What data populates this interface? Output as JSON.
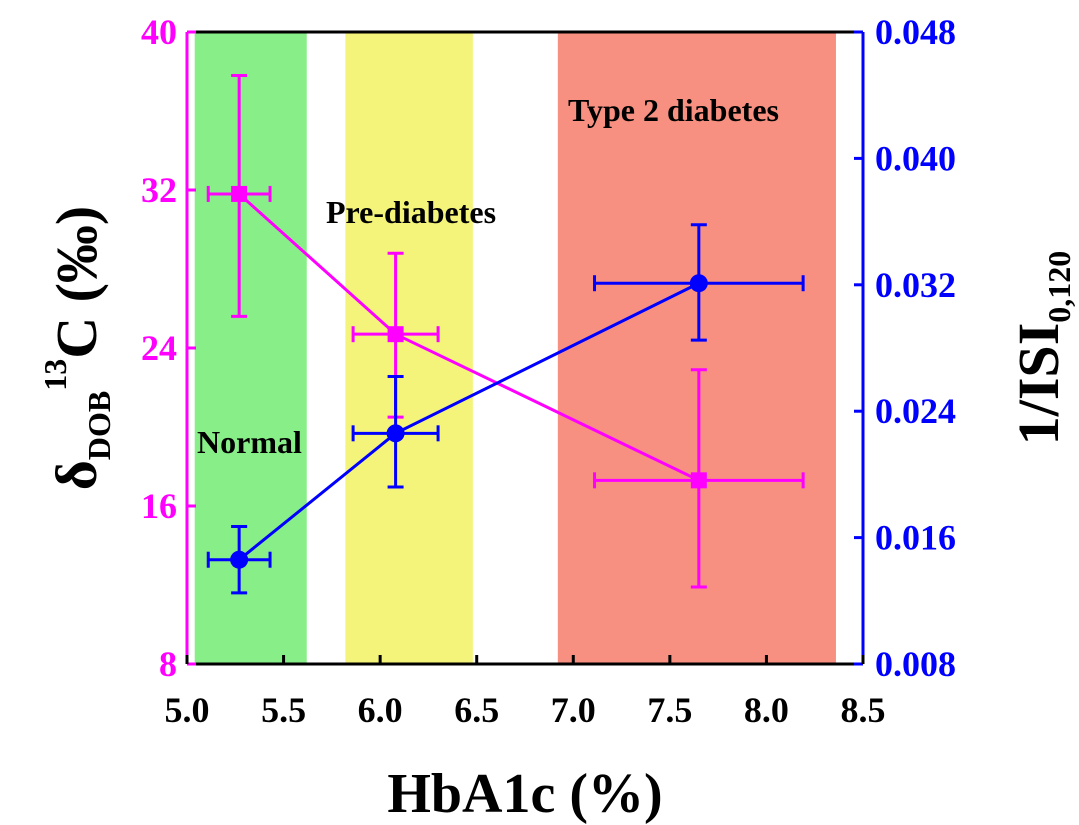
{
  "chart_data": {
    "type": "line",
    "x_axis": {
      "label": "HbA1c (%)",
      "range": [
        5.0,
        8.5
      ],
      "ticks": [
        "5.0",
        "5.5",
        "6.0",
        "6.5",
        "7.0",
        "7.5",
        "8.0",
        "8.5"
      ]
    },
    "y_axis_left": {
      "label_main": "δ",
      "label_sub": "DOB",
      "label_sup": "13",
      "label_rest": "C (‰)",
      "range": [
        8,
        40
      ],
      "ticks": [
        "8",
        "16",
        "24",
        "32",
        "40"
      ],
      "color": "#ff00ff"
    },
    "y_axis_right": {
      "label_main": "1/ISI",
      "label_sub": "0,120",
      "range": [
        0.008,
        0.048
      ],
      "ticks": [
        "0.008",
        "0.016",
        "0.024",
        "0.032",
        "0.040",
        "0.048"
      ],
      "color": "#0000ff"
    },
    "regions": [
      {
        "label": "Normal",
        "x_start": 5.04,
        "x_end": 5.62,
        "color": "#88ee88"
      },
      {
        "label": "Pre-diabetes",
        "x_start": 5.82,
        "x_end": 6.48,
        "color": "#f4f47a"
      },
      {
        "label": "Type 2 diabetes",
        "x_start": 6.92,
        "x_end": 8.36,
        "color": "#f79080"
      }
    ],
    "series": [
      {
        "axis": "left",
        "marker": "square",
        "color": "#ff00ff",
        "points": [
          {
            "x": 5.27,
            "y": 31.8,
            "xerr": 0.16,
            "yerr_low": 6.2,
            "yerr_high": 6.0
          },
          {
            "x": 6.08,
            "y": 24.7,
            "xerr": 0.22,
            "yerr_low": 4.2,
            "yerr_high": 4.1
          },
          {
            "x": 7.65,
            "y": 17.3,
            "xerr": 0.54,
            "yerr_low": 5.4,
            "yerr_high": 5.6
          }
        ]
      },
      {
        "axis": "right",
        "marker": "circle",
        "color": "#0000ff",
        "points": [
          {
            "x": 5.27,
            "y": 0.0146,
            "xerr": 0.16,
            "yerr_low": 0.0021,
            "yerr_high": 0.0021
          },
          {
            "x": 6.08,
            "y": 0.0226,
            "xerr": 0.22,
            "yerr_low": 0.0034,
            "yerr_high": 0.0036
          },
          {
            "x": 7.65,
            "y": 0.0321,
            "xerr": 0.54,
            "yerr_low": 0.0036,
            "yerr_high": 0.0037
          }
        ]
      }
    ]
  }
}
